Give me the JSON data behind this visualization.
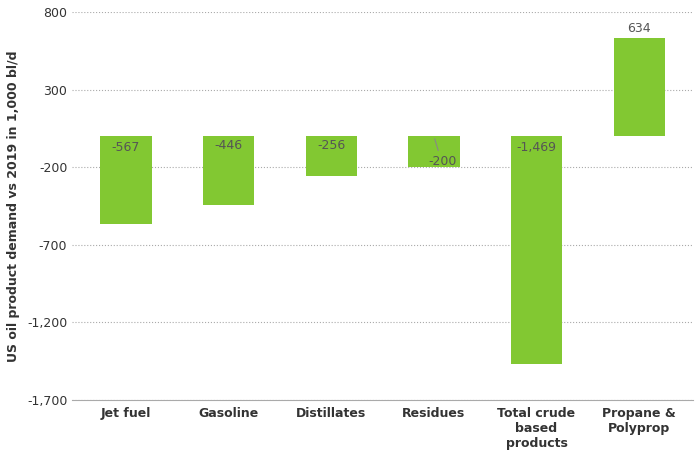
{
  "categories": [
    "Jet fuel",
    "Gasoline",
    "Distillates",
    "Residues",
    "Total crude\nbased\nproducts",
    "Propane &\nPolyprop"
  ],
  "values": [
    -567,
    -446,
    -256,
    -200,
    -1469,
    634
  ],
  "bar_color": "#82c832",
  "bar_edge_color": "none",
  "ylabel": "US oil product demand vs 2019 in 1,000 bl/d",
  "ylim": [
    -1700,
    800
  ],
  "yticks": [
    -1700,
    -1200,
    -700,
    -200,
    300,
    800
  ],
  "ytick_labels": [
    "-1,700",
    "-1,200",
    "-700",
    "-200",
    "300",
    "800"
  ],
  "grid_color": "#aaaaaa",
  "grid_linestyle": ":",
  "background_color": "#ffffff",
  "bar_width": 0.5,
  "label_fontsize": 9,
  "ylabel_fontsize": 9,
  "xtick_fontsize": 9,
  "ytick_fontsize": 9,
  "value_labels": [
    "-567",
    "-446",
    "-256",
    "-200",
    "-1,469",
    "634"
  ],
  "text_color": "#555555"
}
